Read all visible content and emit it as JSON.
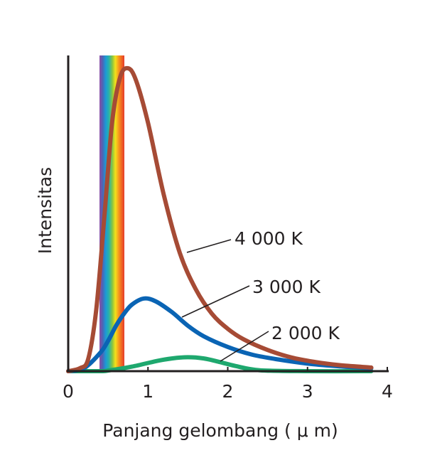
{
  "chart_data": {
    "type": "line",
    "xlabel": "Panjang gelombang ( μ m)",
    "ylabel": "Intensitas",
    "xlim": [
      0,
      4
    ],
    "ylim": [
      0,
      100
    ],
    "x_ticks": [
      "0",
      "1",
      "2",
      "3",
      "4"
    ],
    "y_ticks": [],
    "grid": false,
    "legend": "none",
    "visible_band": {
      "from": 0.4,
      "to": 0.7
    },
    "series": [
      {
        "name": "4 000 K",
        "color": "#a64b35",
        "x": [
          0,
          0.15,
          0.25,
          0.35,
          0.45,
          0.55,
          0.65,
          0.75,
          0.85,
          1.0,
          1.2,
          1.4,
          1.6,
          1.8,
          2.0,
          2.2,
          2.5,
          2.8,
          3.1,
          3.4,
          3.8
        ],
        "y": [
          0,
          1,
          4,
          20,
          50,
          82,
          97,
          100,
          96,
          82,
          58,
          39,
          27,
          19,
          14,
          10.5,
          7,
          4.5,
          3,
          2,
          1.2
        ]
      },
      {
        "name": "3 000 K",
        "color": "#0a64b4",
        "x": [
          0,
          0.2,
          0.4,
          0.5,
          0.6,
          0.7,
          0.8,
          0.95,
          1.1,
          1.3,
          1.5,
          1.7,
          2.0,
          2.3,
          2.6,
          3.0,
          3.4,
          3.8
        ],
        "y": [
          0,
          1,
          6,
          10,
          15,
          19,
          22,
          24,
          23,
          19.5,
          15,
          11.5,
          8,
          5.5,
          4,
          2.5,
          1.6,
          1
        ]
      },
      {
        "name": "2 000 K",
        "color": "#1ea86e",
        "x": [
          0,
          0.4,
          0.5,
          0.8,
          1.1,
          1.3,
          1.5,
          1.7,
          1.9,
          2.1,
          2.4,
          3.0,
          3.8
        ],
        "y": [
          0,
          0,
          0.2,
          1.5,
          3.3,
          4.2,
          4.6,
          4.2,
          3.0,
          1.7,
          0.3,
          0,
          0
        ]
      }
    ]
  }
}
